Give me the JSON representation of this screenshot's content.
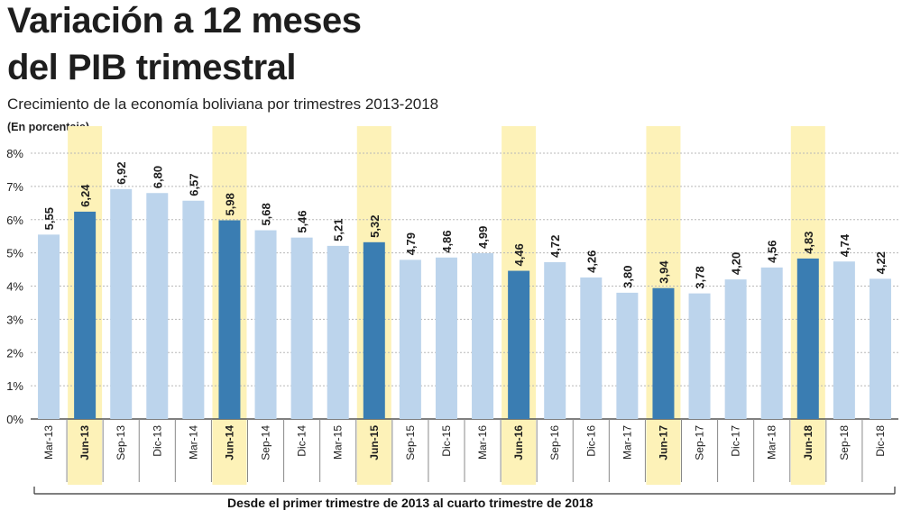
{
  "title_line1": "Variación a 12 meses",
  "title_line2": "del PIB trimestral",
  "subtitle": "Crecimiento de la economía boliviana por trimestres 2013-2018",
  "unit_note": "(En porcentaje)",
  "footnote": "Desde el primer trimestre de 2013 al cuarto trimestre de 2018",
  "colors": {
    "bar_regular": "#bcd4ec",
    "bar_highlight": "#3a7db2",
    "highlight_band": "#fdf2b8",
    "gridline": "#b8b8b8",
    "text": "#1e1e1e"
  },
  "chart_data": {
    "type": "bar",
    "categories": [
      "Mar-13",
      "Jun-13",
      "Sep-13",
      "Dic-13",
      "Mar-14",
      "Jun-14",
      "Sep-14",
      "Dic-14",
      "Mar-15",
      "Jun-15",
      "Sep-15",
      "Dic-15",
      "Mar-16",
      "Jun-16",
      "Sep-16",
      "Dic-16",
      "Mar-17",
      "Jun-17",
      "Sep-17",
      "Dic-17",
      "Mar-18",
      "Jun-18",
      "Sep-18",
      "Dic-18"
    ],
    "values": [
      5.55,
      6.24,
      6.92,
      6.8,
      6.57,
      5.98,
      5.68,
      5.46,
      5.21,
      5.32,
      4.79,
      4.86,
      4.99,
      4.46,
      4.72,
      4.26,
      3.8,
      3.94,
      3.78,
      4.2,
      4.56,
      4.83,
      4.74,
      4.22
    ],
    "value_labels": [
      "5,55",
      "6,24",
      "6,92",
      "6,80",
      "6,57",
      "5,98",
      "5,68",
      "5,46",
      "5,21",
      "5,32",
      "4,79",
      "4,86",
      "4,99",
      "4,46",
      "4,72",
      "4,26",
      "3,80",
      "3,94",
      "3,78",
      "4,20",
      "4,56",
      "4,83",
      "4,74",
      "4,22"
    ],
    "highlighted_categories": [
      "Jun-13",
      "Jun-14",
      "Jun-15",
      "Jun-16",
      "Jun-17",
      "Jun-18"
    ],
    "ylim": [
      0,
      8
    ],
    "y_ticks": [
      "0%",
      "1%",
      "2%",
      "3%",
      "4%",
      "5%",
      "6%",
      "7%",
      "8%"
    ],
    "grid": true,
    "xlabel": "",
    "ylabel": ""
  }
}
